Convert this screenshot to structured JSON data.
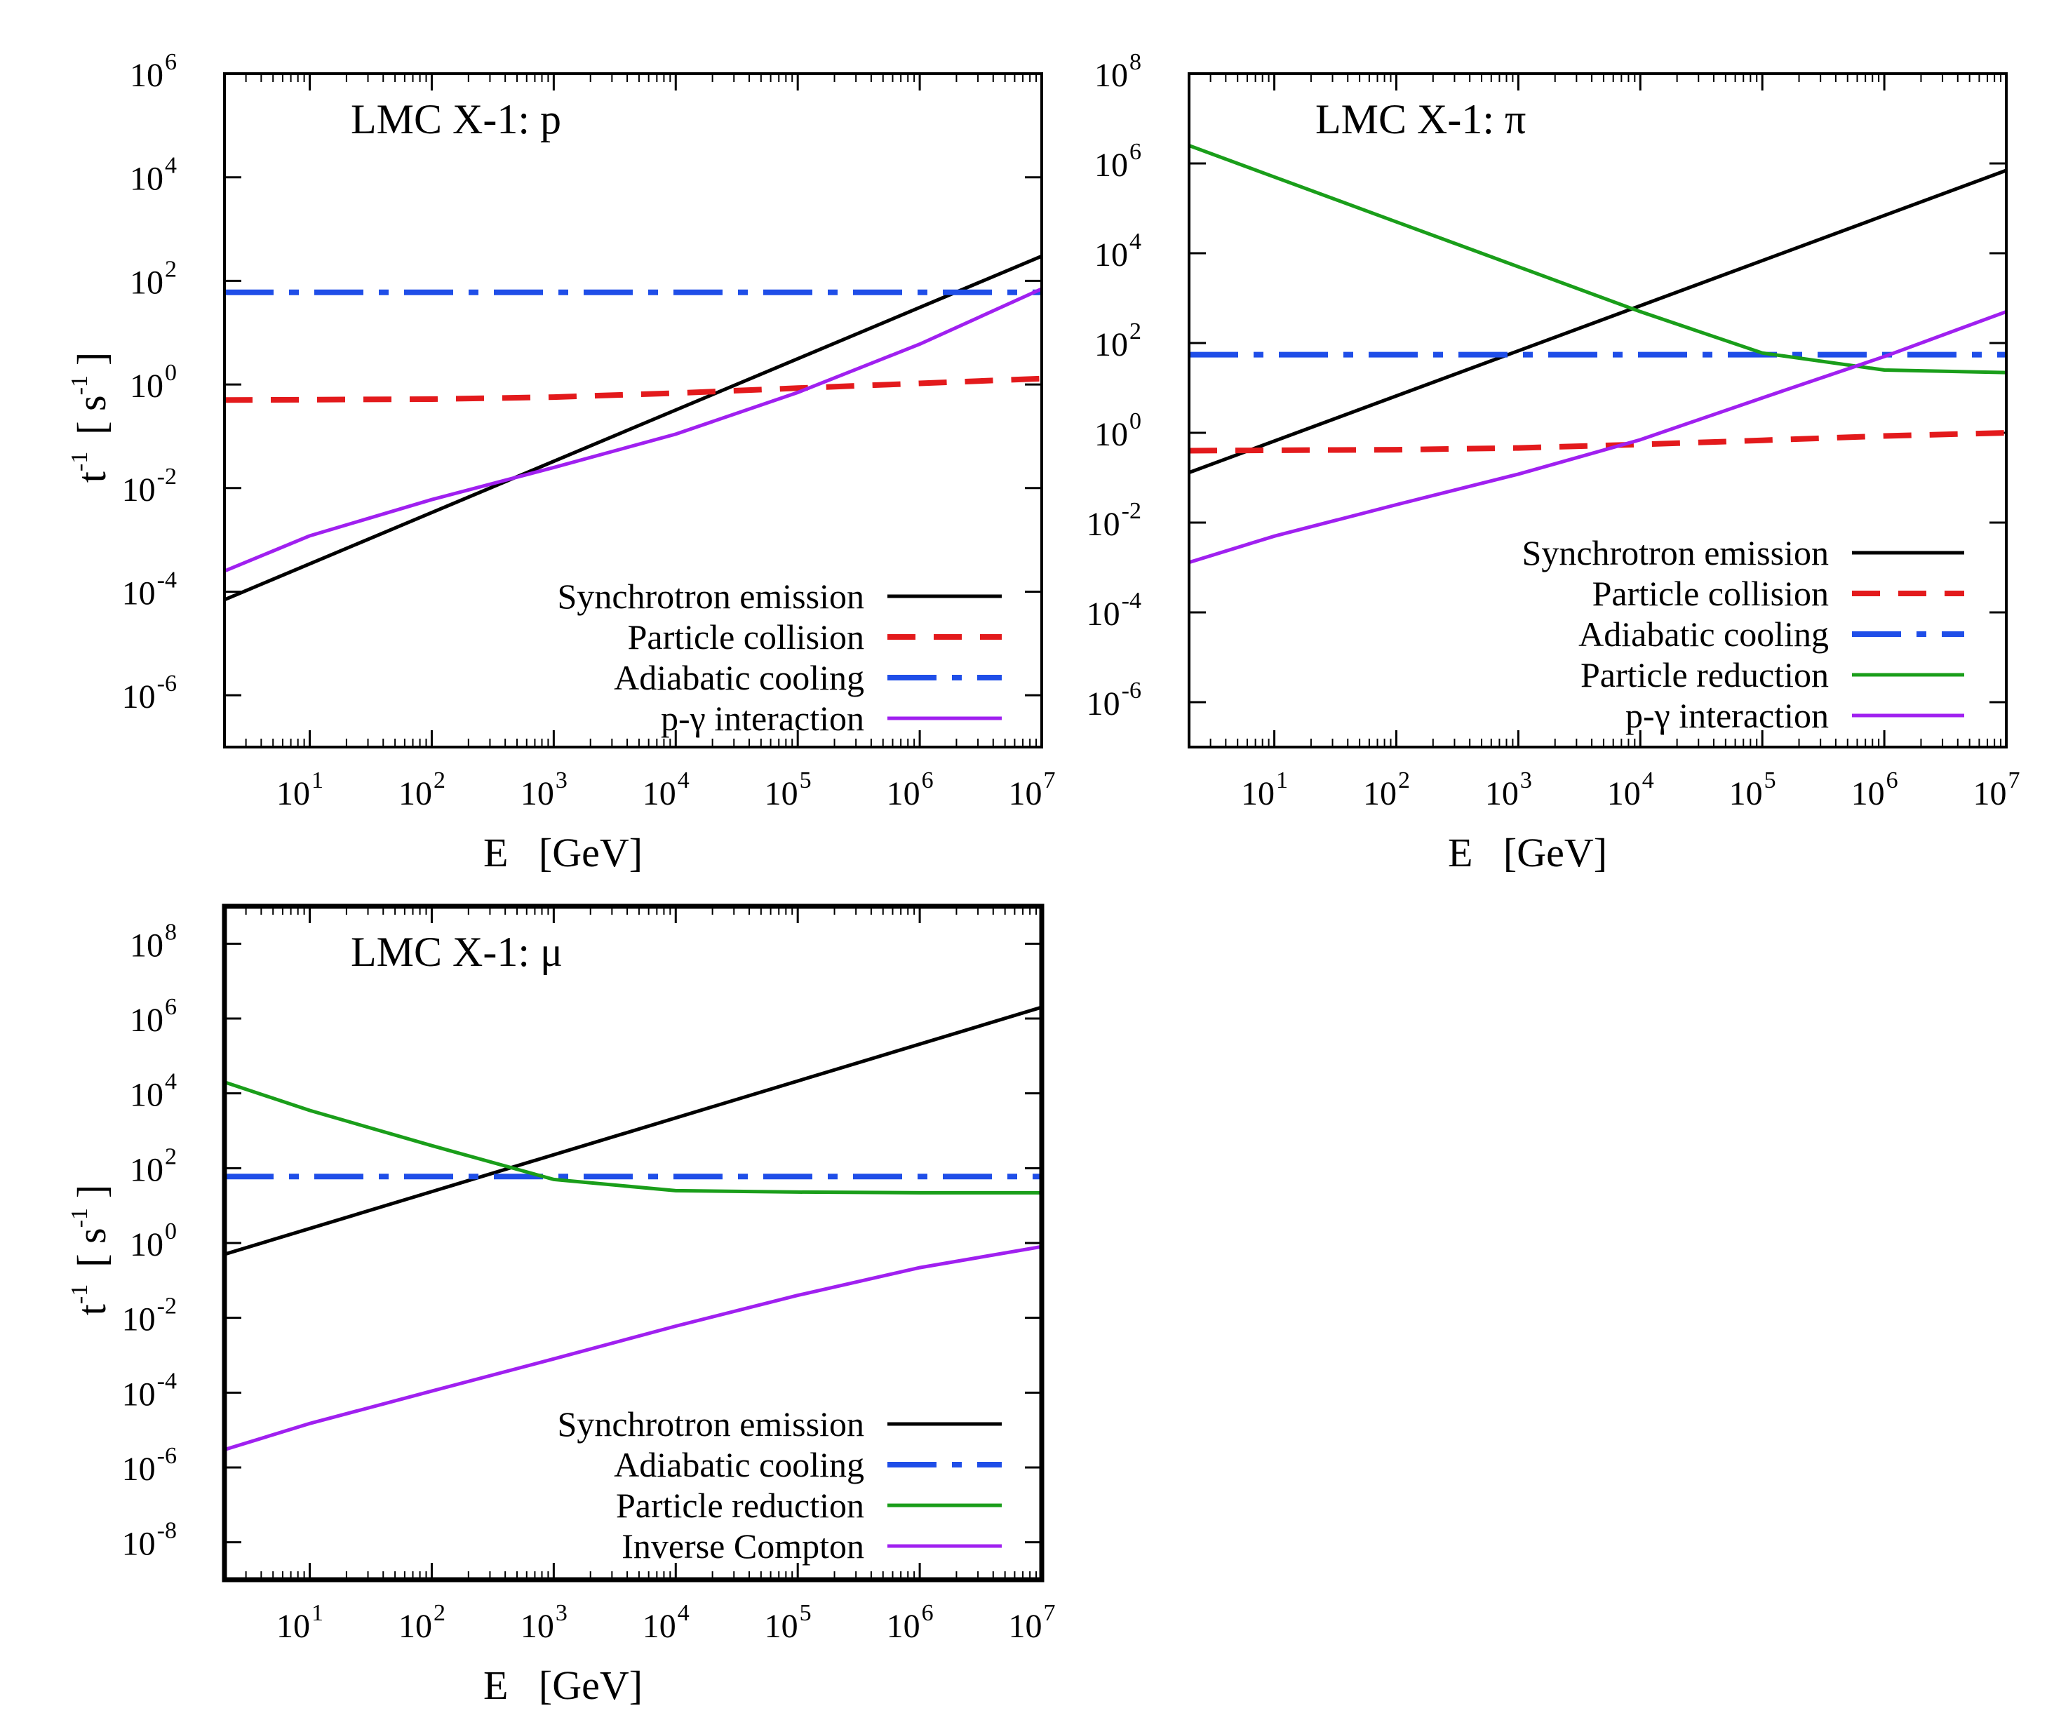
{
  "chart_data": [
    {
      "type": "line",
      "title": "LMC X-1: p",
      "xlabel": "E   [GeV]",
      "ylabel_base": "t",
      "ylabel_exp": "-1",
      "ylabel_unit_pre": "[ s",
      "ylabel_unit_exp": "-1",
      "ylabel_unit_post": "]",
      "xscale": "log",
      "yscale": "log",
      "xlim": [
        2,
        10000000
      ],
      "ylim": [
        1e-07,
        1000000
      ],
      "x_tick_exponents": [
        1,
        2,
        3,
        4,
        5,
        6,
        7
      ],
      "y_tick_exponents": [
        -6,
        -4,
        -2,
        0,
        2,
        4,
        6
      ],
      "legend_position": "bottom-right",
      "series": [
        {
          "name": "Synchrotron emission",
          "color": "#000000",
          "dash": "solid",
          "x": [
            2,
            10000000
          ],
          "y": [
            7e-05,
            300
          ]
        },
        {
          "name": "Particle collision",
          "color": "#e31a1c",
          "dash": "dash",
          "x": [
            2,
            100,
            1000,
            10000,
            100000,
            1000000,
            10000000
          ],
          "y": [
            0.5,
            0.52,
            0.57,
            0.68,
            0.85,
            1.05,
            1.3
          ]
        },
        {
          "name": "Adiabatic cooling",
          "color": "#1f4ee8",
          "dash": "dashdot",
          "x": [
            2,
            10000000
          ],
          "y": [
            60,
            60
          ]
        },
        {
          "name": "p-γ interaction",
          "color": "#a020f0",
          "dash": "solid",
          "x": [
            2,
            10,
            100,
            1000,
            10000,
            100000,
            1000000,
            10000000
          ],
          "y": [
            0.00025,
            0.0012,
            0.006,
            0.025,
            0.11,
            0.7,
            6,
            70
          ]
        }
      ]
    },
    {
      "type": "line",
      "title": "LMC X-1: π",
      "xlabel": "E   [GeV]",
      "ylabel_base": "",
      "ylabel_exp": "",
      "ylabel_unit_pre": "",
      "ylabel_unit_exp": "",
      "ylabel_unit_post": "",
      "xscale": "log",
      "yscale": "log",
      "xlim": [
        2,
        10000000
      ],
      "ylim": [
        1e-07,
        100000000
      ],
      "x_tick_exponents": [
        1,
        2,
        3,
        4,
        5,
        6,
        7
      ],
      "y_tick_exponents": [
        -6,
        -4,
        -2,
        0,
        2,
        4,
        6,
        8
      ],
      "legend_position": "center-right",
      "series": [
        {
          "name": "Synchrotron emission",
          "color": "#000000",
          "dash": "solid",
          "x": [
            2,
            10000000
          ],
          "y": [
            0.13,
            700000
          ]
        },
        {
          "name": "Particle collision",
          "color": "#e31a1c",
          "dash": "dash",
          "x": [
            2,
            100,
            1000,
            10000,
            100000,
            1000000,
            10000000
          ],
          "y": [
            0.4,
            0.42,
            0.46,
            0.55,
            0.68,
            0.85,
            1.0
          ]
        },
        {
          "name": "Adiabatic cooling",
          "color": "#1f4ee8",
          "dash": "dashdot",
          "x": [
            2,
            10000000
          ],
          "y": [
            55,
            55
          ]
        },
        {
          "name": "Particle reduction",
          "color": "#1a9e1a",
          "dash": "solid",
          "x": [
            2,
            10,
            100,
            1000,
            10000,
            100000,
            1000000,
            10000000
          ],
          "y": [
            2500000,
            500000,
            50000,
            5000,
            500,
            60,
            25,
            22
          ]
        },
        {
          "name": "p-γ interaction",
          "color": "#a020f0",
          "dash": "solid",
          "x": [
            2,
            10,
            100,
            1000,
            10000,
            100000,
            1000000,
            10000000
          ],
          "y": [
            0.0013,
            0.005,
            0.025,
            0.12,
            0.7,
            6,
            50,
            500
          ]
        }
      ]
    },
    {
      "type": "line",
      "title": "LMC X-1: μ",
      "xlabel": "E   [GeV]",
      "ylabel_base": "t",
      "ylabel_exp": "-1",
      "ylabel_unit_pre": "[ s",
      "ylabel_unit_exp": "-1",
      "ylabel_unit_post": "]",
      "xscale": "log",
      "yscale": "log",
      "xlim": [
        2,
        10000000
      ],
      "ylim": [
        1e-09,
        1000000000
      ],
      "x_tick_exponents": [
        1,
        2,
        3,
        4,
        5,
        6,
        7
      ],
      "y_tick_exponents": [
        -8,
        -6,
        -4,
        -2,
        0,
        2,
        4,
        6,
        8
      ],
      "legend_position": "bottom-right",
      "series": [
        {
          "name": "Synchrotron emission",
          "color": "#000000",
          "dash": "solid",
          "x": [
            2,
            10000000
          ],
          "y": [
            0.5,
            2000000
          ]
        },
        {
          "name": "Adiabatic cooling",
          "color": "#1f4ee8",
          "dash": "dashdot",
          "x": [
            2,
            10000000
          ],
          "y": [
            60,
            60
          ]
        },
        {
          "name": "Particle reduction",
          "color": "#1a9e1a",
          "dash": "solid",
          "x": [
            2,
            10,
            100,
            1000,
            10000,
            100000,
            1000000,
            10000000
          ],
          "y": [
            20000,
            3500,
            400,
            50,
            25,
            23,
            22,
            22
          ]
        },
        {
          "name": "Inverse Compton",
          "color": "#a020f0",
          "dash": "solid",
          "x": [
            2,
            10,
            100,
            1000,
            10000,
            100000,
            1000000,
            10000000
          ],
          "y": [
            3e-06,
            1.5e-05,
            0.00011,
            0.0008,
            0.006,
            0.04,
            0.22,
            0.8
          ]
        }
      ]
    }
  ]
}
